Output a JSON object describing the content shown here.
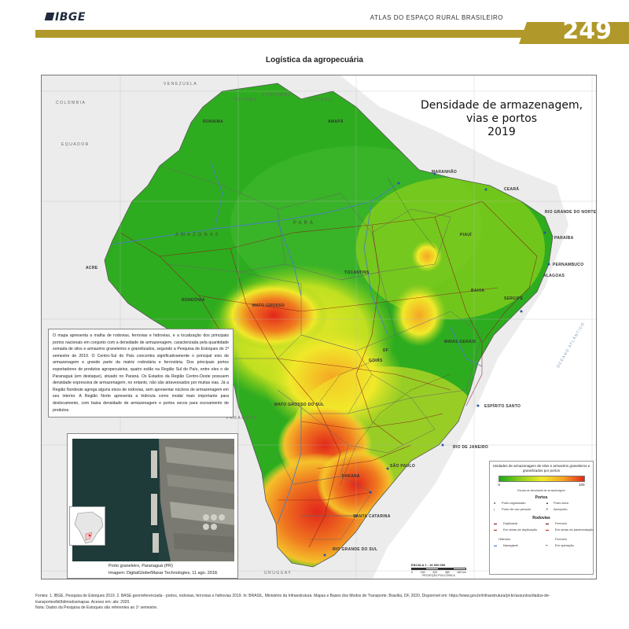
{
  "header": {
    "logo": "IBGE",
    "atlas_title": "ATLAS DO ESPAÇO RURAL BRASILEIRO",
    "page_number": "249"
  },
  "section_title": "Logística da agropecuária",
  "map": {
    "title_lines": [
      "Densidade de armazenagem,",
      "vias e portos",
      "2019"
    ],
    "countries": {
      "venezuela": "VENEZUELA",
      "colombia": "COLOMBIA",
      "suriname": "SURINAME",
      "guyana": "GUYANA",
      "guyane": "GUYANE",
      "equador": "EQUADOR",
      "paraguay": "PARAGUAY",
      "uruguay": "URUGUAY"
    },
    "states": {
      "roraima": "RORAIMA",
      "amapa": "AMAPÁ",
      "maranhao": "MARANHÃO",
      "ceara": "CEARÁ",
      "rn": "RIO GRANDE DO NORTE",
      "paraiba": "PARAÍBA",
      "pernambuco": "PERNAMBUCO",
      "alagoas": "ALAGOAS",
      "sergipe": "SERGIPE",
      "bahia": "BAHIA",
      "piaui": "PIAUÍ",
      "acre": "ACRE",
      "rondonia": "RONDÔNIA",
      "mato_grosso": "MATO GROSSO",
      "tocantins": "TOCANTINS",
      "goias": "GOIÁS",
      "df": "DF",
      "minas": "MINAS GERAIS",
      "espirito_santo": "ESPÍRITO SANTO",
      "rio": "RIO DE JANEIRO",
      "ms": "MATO GROSSO DO SUL",
      "sao_paulo": "SÃO PAULO",
      "parana": "PARANÁ",
      "santa_catarina": "SANTA CATARINA",
      "rs": "RIO GRANDE DO SUL"
    },
    "regions": {
      "amazonas": "AMAZONAS",
      "para": "PARÁ"
    },
    "ocean": "OCEANO ATLÂNTICO"
  },
  "text_box": "O mapa apresenta a malha de rodovias, ferrovias e hidrovias, e a localização dos principais portos nacionais em conjunto com a densidade de armazenagem, caracterizada pela quantidade somada de silos e armazéns graneleiros e granelizados, segundo a Pesquisa de Estoques do 1º semestre de 2019. O Centro-Sul do País concentra significativamente o principal eixo de armazenagem e grande parte da matriz rodoviária e ferroviária. Dos principais portos exportadores de produtos agropecuários, quatro estão na Região Sul do País, entre eles o de Paranaguá (em destaque), situado no Paraná. Os Estados da Região Centro-Oeste possuem densidade expressiva de armazenagem, no entanto, não são atravessados por muitas vias. Já a Região Nordeste agrega alguns eixos de rodovias, sem apresentar núcleos de armazenagem em seu interior. A Região Norte apresenta a hidrovia como modal mais importante para deslocamento, com baixa densidade de armazenagem e portos secos para escoamento de produtos.",
  "photo": {
    "caption_place": "Porto graneleiro, Paranaguá (PR)",
    "caption_source": "Imagem: DigitalGlobe/Maxar Technologies, 11 ago. 2018."
  },
  "legend": {
    "heading": "Unidades de armazenagem de silos e armazéns graneleiros e granelizados por portos",
    "low": "0",
    "high": "100",
    "note": "Escala de densidade de armazenagem",
    "ports_heading": "Portos",
    "port_organized": "Porto organizado",
    "port_dry": "Porto seco",
    "port_private": "Porto de uso privado",
    "airport": "Aeroporto",
    "roads_heading": "Rodovias",
    "road_duplicated": "Duplicada",
    "road_railway": "Ferrovia",
    "road_duplication": "Em obras de duplicação",
    "road_paving": "Em obras de pavimentação",
    "waterway": "Hidrovia",
    "waterway_navigable": "Navegável",
    "railway_operating": "Em operação",
    "railway_label": "Ferrovia"
  },
  "scale": {
    "title": "ESCALA 1 : 16 000 000",
    "ticks": [
      "0",
      "160",
      "320",
      "480",
      "640 km"
    ],
    "projection": "PROJEÇÃO POLICÔNICA"
  },
  "footer": {
    "sources": "Fontes: 1. IBGE, Pesquisa de Estoques 2019. 2. BASE georreferenciada - portos, rodovias, ferrovias e hidrovias 2019. In: BRASIL. Ministério da Infraestrutura. Mapas e Bases dos Modos de Transporte. Brasília, DF, 2020. Disponível em: https://www.gov.br/infraestrutura/pt-br/assuntos/dados-de-transportes/bit/bitmodosmapas. Acesso em: abr. 2020.",
    "note": "Nota: Dados da Pesquisa de Estoques são referentes ao 1º semestre."
  },
  "colors": {
    "gold": "#b0982a",
    "low_density": "#1aa81a",
    "high_density": "#e2261b"
  }
}
